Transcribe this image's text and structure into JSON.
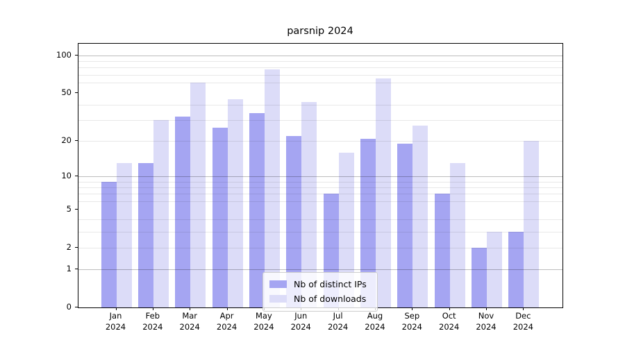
{
  "chart_data": {
    "type": "bar",
    "title": "parsnip 2024",
    "scale": "log1p",
    "grid": true,
    "legend_position": "lower center",
    "categories": [
      "Jan",
      "Feb",
      "Mar",
      "Apr",
      "May",
      "Jun",
      "Jul",
      "Aug",
      "Sep",
      "Oct",
      "Nov",
      "Dec"
    ],
    "category_year": "2024",
    "series": [
      {
        "name": "Nb of distinct IPs",
        "color": "#a5a5f2",
        "values": [
          9,
          13,
          32,
          26,
          34,
          22,
          7,
          21,
          19,
          7,
          2,
          3
        ]
      },
      {
        "name": "Nb of downloads",
        "color": "#dcdcf8",
        "values": [
          13,
          30,
          60,
          44,
          77,
          42,
          16,
          65,
          27,
          13,
          3,
          20
        ]
      }
    ],
    "xlabel": "",
    "ylabel": "",
    "ylim": [
      0,
      124
    ],
    "yticks": [
      0,
      1,
      2,
      5,
      10,
      20,
      50,
      100
    ],
    "major_gridlines": [
      1,
      10,
      100
    ],
    "minor_gridlines": [
      2,
      3,
      4,
      6,
      7,
      8,
      9,
      20,
      30,
      40,
      60,
      70,
      80,
      90
    ]
  }
}
